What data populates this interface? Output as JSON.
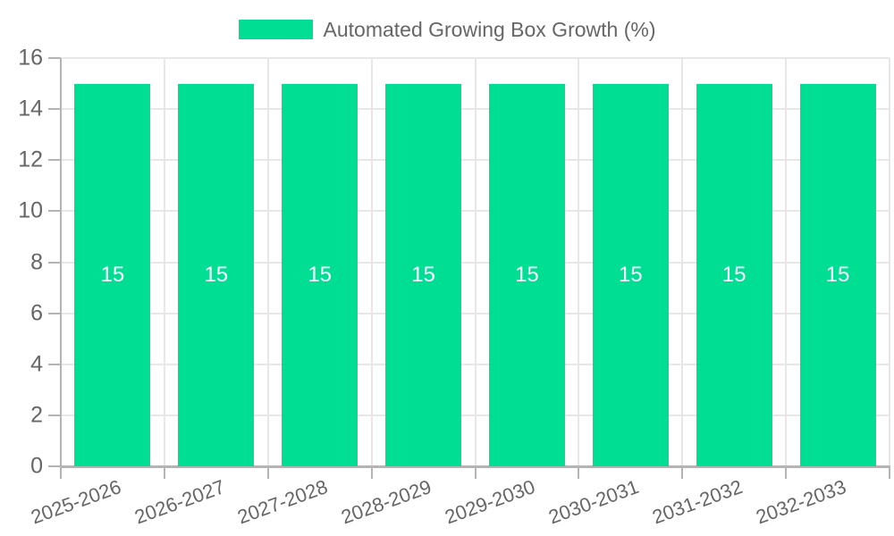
{
  "legend": {
    "label": "Automated Growing Box Growth (%)"
  },
  "chart_data": {
    "type": "bar",
    "title": "Automated Growing Box Growth (%)",
    "legend_position": "top",
    "categories": [
      "2025-2026",
      "2026-2027",
      "2027-2028",
      "2028-2029",
      "2029-2030",
      "2030-2031",
      "2031-2032",
      "2032-2033"
    ],
    "series": [
      {
        "name": "Automated Growing Box Growth (%)",
        "values": [
          15,
          15,
          15,
          15,
          15,
          15,
          15,
          15
        ],
        "data_labels": [
          "15",
          "15",
          "15",
          "15",
          "15",
          "15",
          "15",
          "15"
        ]
      }
    ],
    "xlabel": "",
    "ylabel": "",
    "ylim": [
      0,
      16
    ],
    "yticks": [
      0,
      2,
      4,
      6,
      8,
      10,
      12,
      14,
      16
    ],
    "grid": true,
    "x_label_rotation_deg": -20,
    "colors": {
      "bar": "#00DE94",
      "value_label": "#FFFFFF",
      "grid_line": "#E7E7E7",
      "axis_line": "#B4B4B4",
      "tick_text": "#666666",
      "legend_text": "#666666",
      "background": "#FFFFFF"
    }
  }
}
